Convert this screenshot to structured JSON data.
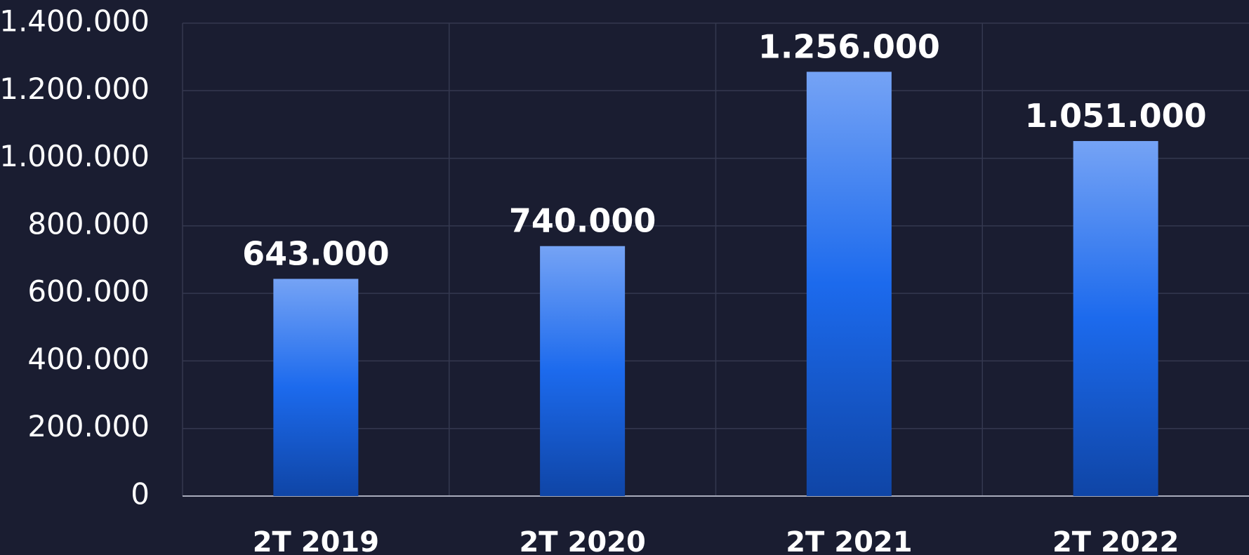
{
  "chart_data": {
    "type": "bar",
    "categories": [
      "2T 2019",
      "2T 2020",
      "2T 2021",
      "2T 2022"
    ],
    "values": [
      643000,
      740000,
      1256000,
      1051000
    ],
    "data_labels": [
      "643.000",
      "740.000",
      "1.256.000",
      "1.051.000"
    ],
    "y_ticks": [
      0,
      200000,
      400000,
      600000,
      800000,
      1000000,
      1200000,
      1400000
    ],
    "y_tick_labels": [
      "0",
      "200.000",
      "400.000",
      "600.000",
      "800.000",
      "1.000.000",
      "1.200.000",
      "1.400.000"
    ],
    "ylim": [
      0,
      1400000
    ],
    "grid": true,
    "title": "",
    "xlabel": "",
    "ylabel": "",
    "colors": {
      "background": "#1a1d31",
      "grid": "#34384f",
      "axis": "#a9acbc",
      "bar_top": "#75a3f5",
      "bar_mid": "#1c6aed",
      "bar_bottom": "#0f45a6",
      "text": "#ffffff"
    }
  }
}
